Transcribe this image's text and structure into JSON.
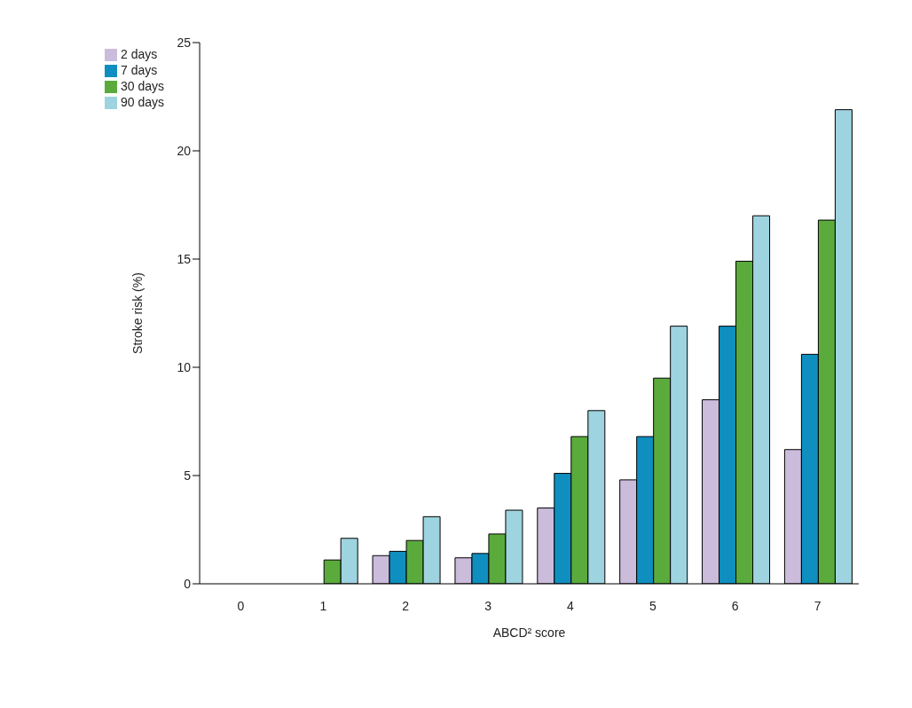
{
  "chart_data": {
    "type": "bar",
    "xlabel": "ABCD² score",
    "ylabel": "Stroke risk (%)",
    "categories": [
      "0",
      "1",
      "2",
      "3",
      "4",
      "5",
      "6",
      "7"
    ],
    "series": [
      {
        "name": "2 days",
        "color": "#cbbcdc",
        "values": [
          0,
          0,
          1.3,
          1.2,
          3.5,
          4.8,
          8.5,
          6.2
        ]
      },
      {
        "name": "7 days",
        "color": "#0f8fbf",
        "values": [
          0,
          0,
          1.5,
          1.4,
          5.1,
          6.8,
          11.9,
          10.6
        ]
      },
      {
        "name": "30 days",
        "color": "#5aab3c",
        "values": [
          0,
          1.1,
          2.0,
          2.3,
          6.8,
          9.5,
          14.9,
          16.8
        ]
      },
      {
        "name": "90 days",
        "color": "#9ed3e0",
        "values": [
          0,
          2.1,
          3.1,
          3.4,
          8.0,
          11.9,
          17.0,
          21.9
        ]
      }
    ],
    "ylim": [
      0,
      25
    ],
    "yticks": [
      0,
      5,
      10,
      15,
      20,
      25
    ],
    "grid": false,
    "legend": "top left"
  }
}
